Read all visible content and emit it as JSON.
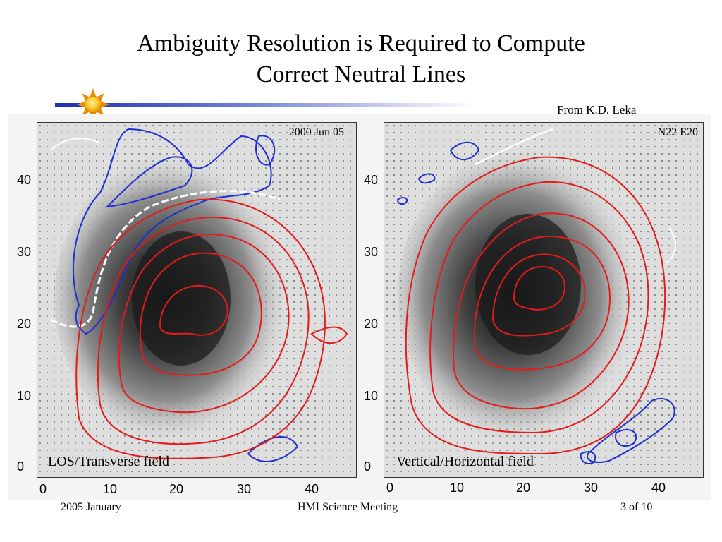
{
  "slide": {
    "title_line1": "Ambiguity Resolution is Required to Compute",
    "title_line2": "Correct Neutral Lines",
    "credit": "From K.D. Leka",
    "accent_colors": {
      "divider": "#1a2fb8",
      "sun_core": "#f7c51a",
      "sun_rays": "#f08a0b"
    }
  },
  "figure": {
    "left_panel": {
      "caption": "LOS/Transverse field",
      "date_label": "2000 Jun 05",
      "y_ticks": [
        "0",
        "10",
        "20",
        "30",
        "40"
      ],
      "x_ticks": [
        "0",
        "10",
        "20",
        "30",
        "40"
      ]
    },
    "right_panel": {
      "caption": "Vertical/Horizontal field",
      "location_label": "N22 E20",
      "y_ticks": [
        "0",
        "10",
        "20",
        "30",
        "40"
      ],
      "x_ticks": [
        "0",
        "10",
        "20",
        "30",
        "40"
      ]
    },
    "contour_colors": {
      "positive": "#e31b1b",
      "negative": "#1f2fd0",
      "neutral_line": "#ffffff"
    }
  },
  "footer": {
    "left": "2005 January",
    "center": "HMI Science Meeting",
    "right": "3 of 10"
  }
}
